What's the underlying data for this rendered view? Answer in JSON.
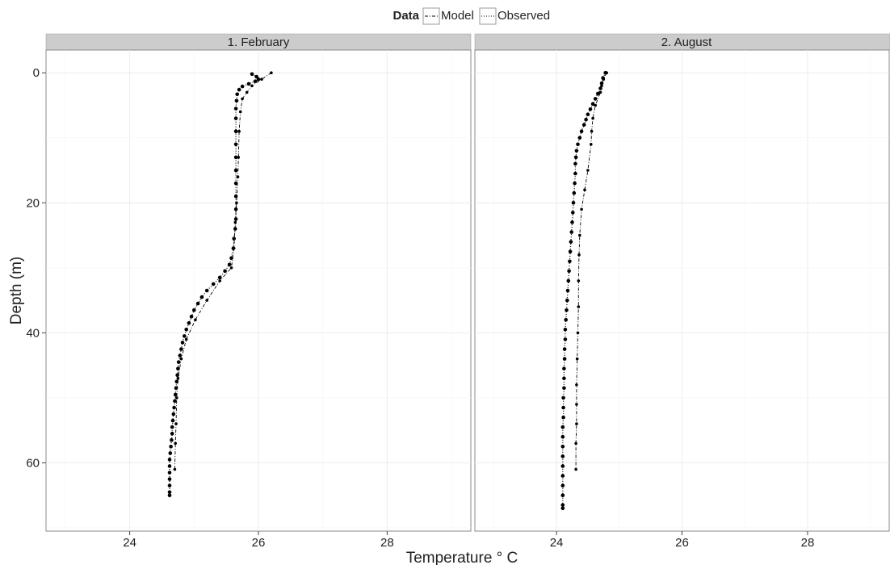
{
  "legend": {
    "title": "Data",
    "entries": [
      "Model",
      "Observed"
    ]
  },
  "axes": {
    "xlabel": "Temperature ° C",
    "ylabel": "Depth (m)"
  },
  "chart_data": {
    "type": "line",
    "facets": [
      {
        "name": "1. February",
        "series": [
          {
            "name": "Model",
            "points": [
              [
                26.2,
                0
              ],
              [
                26.05,
                1
              ],
              [
                25.9,
                2
              ],
              [
                25.82,
                3
              ],
              [
                25.75,
                4
              ],
              [
                25.72,
                6
              ],
              [
                25.7,
                9
              ],
              [
                25.69,
                13
              ],
              [
                25.68,
                16
              ],
              [
                25.66,
                20
              ],
              [
                25.64,
                23
              ],
              [
                25.62,
                27
              ],
              [
                25.58,
                30
              ],
              [
                25.4,
                32
              ],
              [
                25.2,
                35
              ],
              [
                25.02,
                38
              ],
              [
                24.88,
                41
              ],
              [
                24.8,
                44
              ],
              [
                24.75,
                47
              ],
              [
                24.73,
                50
              ],
              [
                24.72,
                54
              ],
              [
                24.71,
                57
              ],
              [
                24.7,
                61
              ]
            ]
          },
          {
            "name": "Observed",
            "points": [
              [
                25.9,
                0.2
              ],
              [
                25.97,
                0.6
              ],
              [
                26.0,
                1.0
              ],
              [
                25.95,
                1.3
              ],
              [
                25.85,
                1.7
              ],
              [
                25.75,
                2.1
              ],
              [
                25.7,
                2.6
              ],
              [
                25.67,
                3.3
              ],
              [
                25.66,
                4.3
              ],
              [
                25.65,
                5.5
              ],
              [
                25.65,
                7
              ],
              [
                25.65,
                9
              ],
              [
                25.65,
                11
              ],
              [
                25.65,
                13
              ],
              [
                25.65,
                15
              ],
              [
                25.65,
                17
              ],
              [
                25.65,
                19
              ],
              [
                25.65,
                21
              ],
              [
                25.65,
                22.5
              ],
              [
                25.64,
                24
              ],
              [
                25.62,
                25.5
              ],
              [
                25.61,
                27
              ],
              [
                25.58,
                28.5
              ],
              [
                25.55,
                29.5
              ],
              [
                25.48,
                30.5
              ],
              [
                25.4,
                31.5
              ],
              [
                25.3,
                32.5
              ],
              [
                25.2,
                33.5
              ],
              [
                25.12,
                34.5
              ],
              [
                25.06,
                35.5
              ],
              [
                25.0,
                36.5
              ],
              [
                24.96,
                37.5
              ],
              [
                24.92,
                38.5
              ],
              [
                24.88,
                39.5
              ],
              [
                24.85,
                40.5
              ],
              [
                24.82,
                41.5
              ],
              [
                24.8,
                42.5
              ],
              [
                24.78,
                43.5
              ],
              [
                24.76,
                44.5
              ],
              [
                24.75,
                45.5
              ],
              [
                24.74,
                46.5
              ],
              [
                24.73,
                47.5
              ],
              [
                24.72,
                48.5
              ],
              [
                24.71,
                49.5
              ],
              [
                24.7,
                50.5
              ],
              [
                24.69,
                51.5
              ],
              [
                24.68,
                52.5
              ],
              [
                24.67,
                53.5
              ],
              [
                24.66,
                54.5
              ],
              [
                24.66,
                55.5
              ],
              [
                24.65,
                56.5
              ],
              [
                24.64,
                57.5
              ],
              [
                24.63,
                58.5
              ],
              [
                24.62,
                59.5
              ],
              [
                24.62,
                60.5
              ],
              [
                24.62,
                61.5
              ],
              [
                24.62,
                62.5
              ],
              [
                24.62,
                63.5
              ],
              [
                24.62,
                64.5
              ],
              [
                24.62,
                65
              ]
            ]
          }
        ]
      },
      {
        "name": "2. August",
        "series": [
          {
            "name": "Model",
            "points": [
              [
                24.8,
                0
              ],
              [
                24.75,
                1
              ],
              [
                24.72,
                2
              ],
              [
                24.7,
                3
              ],
              [
                24.62,
                5
              ],
              [
                24.58,
                7
              ],
              [
                24.56,
                9
              ],
              [
                24.55,
                11
              ],
              [
                24.5,
                15
              ],
              [
                24.45,
                18
              ],
              [
                24.4,
                21
              ],
              [
                24.37,
                25
              ],
              [
                24.36,
                28
              ],
              [
                24.35,
                32
              ],
              [
                24.35,
                36
              ],
              [
                24.34,
                40
              ],
              [
                24.33,
                44
              ],
              [
                24.32,
                48
              ],
              [
                24.32,
                51
              ],
              [
                24.32,
                54
              ],
              [
                24.31,
                57
              ],
              [
                24.31,
                61
              ]
            ]
          },
          {
            "name": "Observed",
            "points": [
              [
                24.78,
                0
              ],
              [
                24.74,
                0.8
              ],
              [
                24.72,
                1.6
              ],
              [
                24.7,
                2.4
              ],
              [
                24.66,
                3.2
              ],
              [
                24.62,
                4
              ],
              [
                24.58,
                4.8
              ],
              [
                24.54,
                5.6
              ],
              [
                24.5,
                6.4
              ],
              [
                24.47,
                7.2
              ],
              [
                24.44,
                8
              ],
              [
                24.4,
                9
              ],
              [
                24.37,
                10
              ],
              [
                24.34,
                11
              ],
              [
                24.32,
                12
              ],
              [
                24.31,
                13
              ],
              [
                24.3,
                14
              ],
              [
                24.3,
                15.5
              ],
              [
                24.29,
                17
              ],
              [
                24.28,
                18.5
              ],
              [
                24.27,
                20
              ],
              [
                24.26,
                21.5
              ],
              [
                24.25,
                23
              ],
              [
                24.24,
                24.5
              ],
              [
                24.23,
                26
              ],
              [
                24.22,
                27.5
              ],
              [
                24.21,
                29
              ],
              [
                24.2,
                30.5
              ],
              [
                24.19,
                32
              ],
              [
                24.18,
                33.5
              ],
              [
                24.17,
                35
              ],
              [
                24.16,
                36.5
              ],
              [
                24.15,
                38
              ],
              [
                24.14,
                39.5
              ],
              [
                24.14,
                41
              ],
              [
                24.13,
                42.5
              ],
              [
                24.13,
                44
              ],
              [
                24.12,
                45.5
              ],
              [
                24.12,
                47
              ],
              [
                24.12,
                48.5
              ],
              [
                24.11,
                50
              ],
              [
                24.11,
                51.5
              ],
              [
                24.11,
                53
              ],
              [
                24.1,
                54.5
              ],
              [
                24.1,
                56
              ],
              [
                24.1,
                57.5
              ],
              [
                24.1,
                59
              ],
              [
                24.1,
                60.5
              ],
              [
                24.1,
                62
              ],
              [
                24.1,
                63.5
              ],
              [
                24.1,
                65
              ],
              [
                24.1,
                66.5
              ],
              [
                24.1,
                67
              ]
            ]
          }
        ]
      }
    ],
    "xlim": [
      22.7,
      29.3
    ],
    "ylim": [
      70.5,
      -3.5
    ],
    "xticks": [
      24,
      26,
      28
    ],
    "yticks": [
      0,
      20,
      40,
      60
    ],
    "grid": true,
    "legend_position": "top"
  }
}
